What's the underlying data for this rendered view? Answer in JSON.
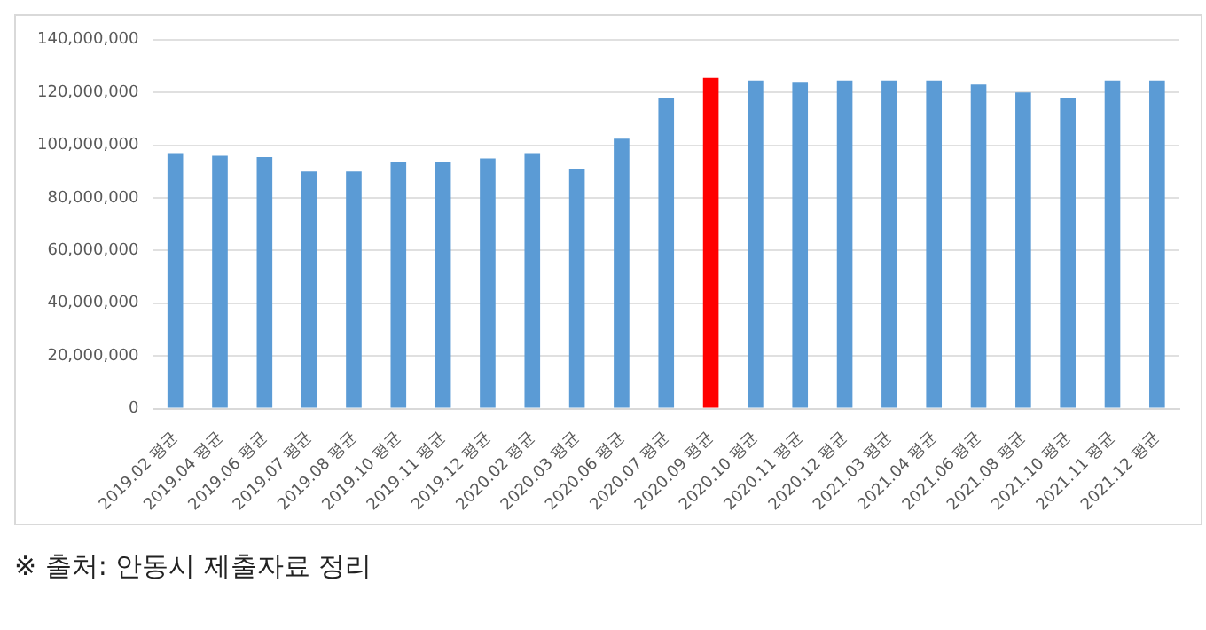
{
  "chart_data": {
    "type": "bar",
    "categories": [
      "2019.02 평균",
      "2019.04 평균",
      "2019.06 평균",
      "2019.07 평균",
      "2019.08 평균",
      "2019.10 평균",
      "2019.11 평균",
      "2019.12 평균",
      "2020.02 평균",
      "2020.03 평균",
      "2020.06 평균",
      "2020.07 평균",
      "2020.09 평균",
      "2020.10 평균",
      "2020.11 평균",
      "2020.12 평균",
      "2021.03 평균",
      "2021.04 평균",
      "2021.06 평균",
      "2021.08 평균",
      "2021.10 평균",
      "2021.11 평균",
      "2021.12 평균"
    ],
    "values": [
      97000000,
      96000000,
      95500000,
      90000000,
      90000000,
      93500000,
      93500000,
      95000000,
      97000000,
      91000000,
      102500000,
      118000000,
      125500000,
      124500000,
      124000000,
      124500000,
      124500000,
      124500000,
      123000000,
      120000000,
      118000000,
      124500000,
      124500000
    ],
    "colors": [
      "#5b9bd5",
      "#5b9bd5",
      "#5b9bd5",
      "#5b9bd5",
      "#5b9bd5",
      "#5b9bd5",
      "#5b9bd5",
      "#5b9bd5",
      "#5b9bd5",
      "#5b9bd5",
      "#5b9bd5",
      "#5b9bd5",
      "#ff0000",
      "#5b9bd5",
      "#5b9bd5",
      "#5b9bd5",
      "#5b9bd5",
      "#5b9bd5",
      "#5b9bd5",
      "#5b9bd5",
      "#5b9bd5",
      "#5b9bd5",
      "#5b9bd5"
    ],
    "ylim": [
      0,
      140000000
    ],
    "yticks": [
      {
        "value": 0,
        "label": "0"
      },
      {
        "value": 20000000,
        "label": "20,000,000"
      },
      {
        "value": 40000000,
        "label": "40,000,000"
      },
      {
        "value": 60000000,
        "label": "60,000,000"
      },
      {
        "value": 80000000,
        "label": "80,000,000"
      },
      {
        "value": 100000000,
        "label": "100,000,000"
      },
      {
        "value": 120000000,
        "label": "120,000,000"
      },
      {
        "value": 140000000,
        "label": "140,000,000"
      }
    ],
    "grid": "y",
    "annotations": [
      "※ 출처: 안동시 제출자료 정리"
    ]
  }
}
